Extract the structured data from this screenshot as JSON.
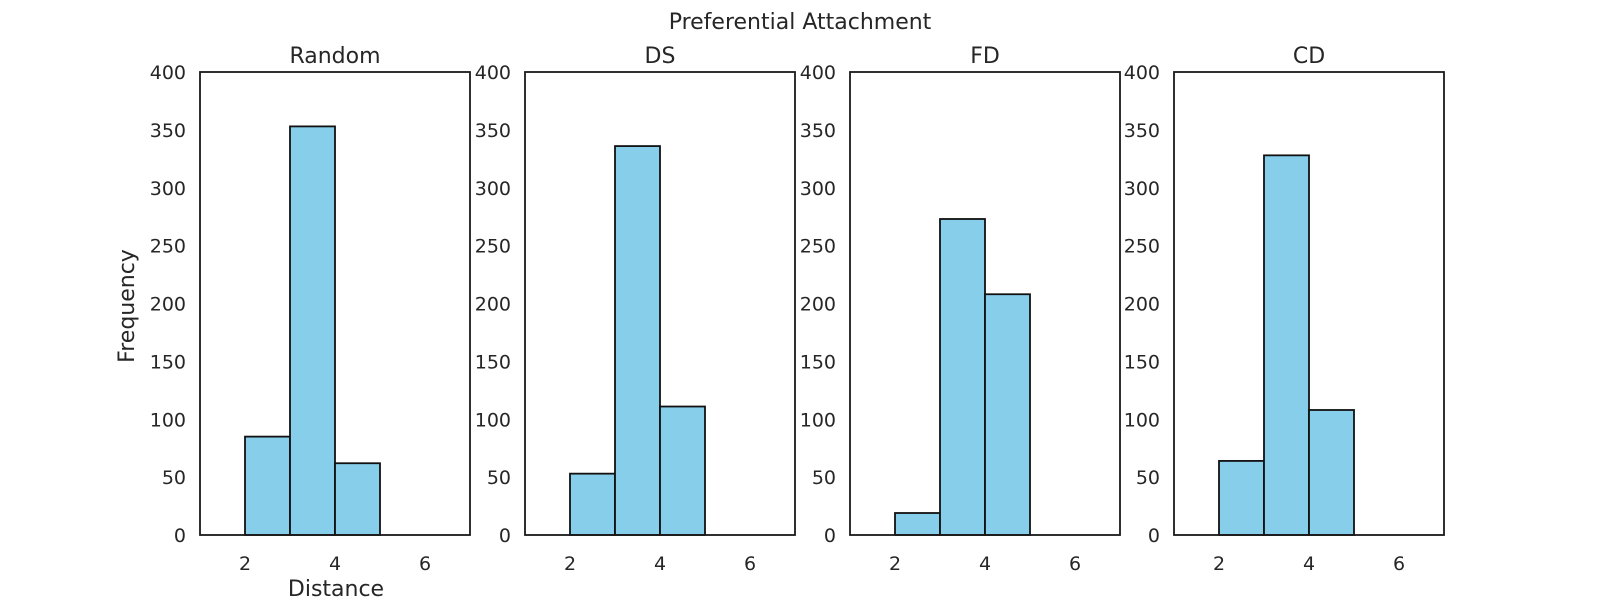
{
  "figure": {
    "suptitle": "Preferential Attachment",
    "xlabel": "Distance",
    "ylabel": "Frequency"
  },
  "colors": {
    "bar_fill": "#87CEEB",
    "bar_edge": "#111111"
  },
  "chart_data": [
    {
      "type": "bar",
      "title": "Random",
      "xlim": [
        1,
        7
      ],
      "ylim": [
        0,
        400
      ],
      "xticks": [
        2,
        4,
        6
      ],
      "yticks": [
        0,
        50,
        100,
        150,
        200,
        250,
        300,
        350,
        400
      ],
      "bins": [
        [
          2,
          3
        ],
        [
          3,
          4
        ],
        [
          4,
          5
        ]
      ],
      "values": [
        85,
        353,
        62
      ],
      "xlabel": "Distance",
      "ylabel": "Frequency"
    },
    {
      "type": "bar",
      "title": "DS",
      "xlim": [
        1,
        7
      ],
      "ylim": [
        0,
        400
      ],
      "xticks": [
        2,
        4,
        6
      ],
      "yticks": [
        0,
        50,
        100,
        150,
        200,
        250,
        300,
        350,
        400
      ],
      "bins": [
        [
          2,
          3
        ],
        [
          3,
          4
        ],
        [
          4,
          5
        ]
      ],
      "values": [
        53,
        336,
        111
      ]
    },
    {
      "type": "bar",
      "title": "FD",
      "xlim": [
        1,
        7
      ],
      "ylim": [
        0,
        400
      ],
      "xticks": [
        2,
        4,
        6
      ],
      "yticks": [
        0,
        50,
        100,
        150,
        200,
        250,
        300,
        350,
        400
      ],
      "bins": [
        [
          2,
          3
        ],
        [
          3,
          4
        ],
        [
          4,
          5
        ]
      ],
      "values": [
        19,
        273,
        208
      ]
    },
    {
      "type": "bar",
      "title": "CD",
      "xlim": [
        1,
        7
      ],
      "ylim": [
        0,
        400
      ],
      "xticks": [
        2,
        4,
        6
      ],
      "yticks": [
        0,
        50,
        100,
        150,
        200,
        250,
        300,
        350,
        400
      ],
      "bins": [
        [
          2,
          3
        ],
        [
          3,
          4
        ],
        [
          4,
          5
        ]
      ],
      "values": [
        64,
        328,
        108
      ]
    }
  ]
}
